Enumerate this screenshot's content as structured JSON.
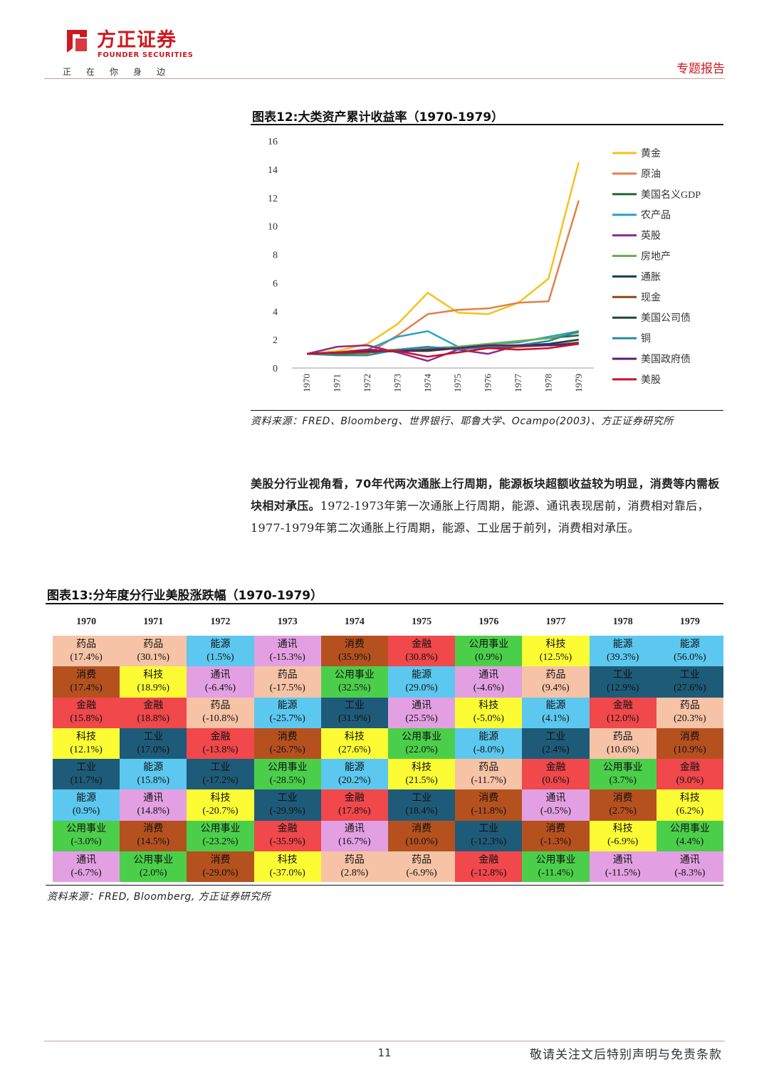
{
  "header": {
    "brand_cn": "方正证券",
    "brand_en": "FOUNDER SECURITIES",
    "slogan": "正在你身边",
    "report_type": "专题报告"
  },
  "figure12": {
    "title": "图表12:大类资产累计收益率（1970-1979）",
    "source": "资料来源：FRED、Bloomberg、世界银行、耶鲁大学、Ocampo(2003)、方正证券研究所"
  },
  "chart_data": {
    "type": "line",
    "title": "",
    "xlabel": "",
    "ylabel": "",
    "ylim": [
      0,
      16
    ],
    "yticks": [
      0,
      2,
      4,
      6,
      8,
      10,
      12,
      14,
      16
    ],
    "x": [
      "1970",
      "1971",
      "1972",
      "1973",
      "1974",
      "1975",
      "1976",
      "1977",
      "1978",
      "1979"
    ],
    "legend_position": "right",
    "grid": false,
    "series": [
      {
        "name": "黄金",
        "color": "#f5c21b",
        "values": [
          1.0,
          1.2,
          1.7,
          3.1,
          5.3,
          3.9,
          3.8,
          4.6,
          6.3,
          14.5
        ]
      },
      {
        "name": "原油",
        "color": "#e2804a",
        "values": [
          1.0,
          1.0,
          1.0,
          2.3,
          3.8,
          4.1,
          4.2,
          4.6,
          4.7,
          11.8
        ]
      },
      {
        "name": "美国名义GDP",
        "color": "#1e6b35",
        "values": [
          1.0,
          1.1,
          1.2,
          1.3,
          1.4,
          1.5,
          1.7,
          1.9,
          2.1,
          2.3
        ]
      },
      {
        "name": "农产品",
        "color": "#27a1c4",
        "values": [
          1.0,
          1.1,
          1.3,
          2.2,
          2.6,
          1.5,
          1.7,
          1.8,
          2.2,
          2.6
        ]
      },
      {
        "name": "英股",
        "color": "#8e2a8e",
        "values": [
          1.0,
          1.5,
          1.6,
          1.1,
          0.5,
          1.3,
          1.0,
          1.6,
          1.6,
          1.8
        ]
      },
      {
        "name": "房地产",
        "color": "#6ab04c",
        "values": [
          1.0,
          1.1,
          1.2,
          1.3,
          1.4,
          1.5,
          1.7,
          1.9,
          2.1,
          2.5
        ]
      },
      {
        "name": "通胀",
        "color": "#0f3d55",
        "values": [
          1.0,
          1.0,
          1.1,
          1.2,
          1.3,
          1.4,
          1.5,
          1.6,
          1.7,
          2.0
        ]
      },
      {
        "name": "现金",
        "color": "#8a4a1a",
        "values": [
          1.0,
          1.0,
          1.1,
          1.2,
          1.3,
          1.4,
          1.4,
          1.5,
          1.6,
          1.8
        ]
      },
      {
        "name": "美国公司债",
        "color": "#1d4a2a",
        "values": [
          1.0,
          1.1,
          1.2,
          1.2,
          1.2,
          1.4,
          1.6,
          1.6,
          1.6,
          1.7
        ]
      },
      {
        "name": "铜",
        "color": "#2e86a0",
        "values": [
          1.0,
          0.9,
          0.9,
          1.3,
          1.5,
          1.3,
          1.5,
          1.6,
          1.9,
          2.6
        ]
      },
      {
        "name": "美国政府债",
        "color": "#5b1f6e",
        "values": [
          1.0,
          1.1,
          1.2,
          1.2,
          1.3,
          1.4,
          1.6,
          1.6,
          1.6,
          1.7
        ]
      },
      {
        "name": "美股",
        "color": "#c8102e",
        "values": [
          1.0,
          1.1,
          1.3,
          1.2,
          0.8,
          1.1,
          1.4,
          1.3,
          1.4,
          1.7
        ]
      }
    ]
  },
  "paragraph": {
    "bold": "美股分行业视角看，70年代两次通胀上行周期，能源板块超额收益较为明显，消费等内需板块相对承压。",
    "text": "1972-1973年第一次通胀上行周期，能源、通讯表现居前，消费相对靠后，1977-1979年第二次通胀上行周期，能源、工业居于前列，消费相对承压。"
  },
  "figure13": {
    "title": "图表13:分年度分行业美股涨跌幅（1970-1979）",
    "source": "资料来源：FRED, Bloomberg, 方正证券研究所",
    "years": [
      "1970",
      "1971",
      "1972",
      "1973",
      "1974",
      "1975",
      "1976",
      "1977",
      "1978",
      "1979"
    ],
    "sector_colors": {
      "药品": "#f6c3a6",
      "消费": "#b5511f",
      "金融": "#f0484b",
      "科技": "#fcfc35",
      "工业": "#1e5b78",
      "能源": "#5cc8ef",
      "公用事业": "#4bcf4b",
      "通讯": "#e2a0e2"
    },
    "rows": [
      [
        [
          "药品",
          "(17.4%)"
        ],
        [
          "药品",
          "(30.1%)"
        ],
        [
          "能源",
          "(1.5%)"
        ],
        [
          "通讯",
          "(-15.3%)"
        ],
        [
          "消费",
          "(35.9%)"
        ],
        [
          "金融",
          "(30.8%)"
        ],
        [
          "公用事业",
          "(0.9%)"
        ],
        [
          "科技",
          "(12.5%)"
        ],
        [
          "能源",
          "(39.3%)"
        ],
        [
          "能源",
          "(56.0%)"
        ]
      ],
      [
        [
          "消费",
          "(17.4%)"
        ],
        [
          "科技",
          "(18.9%)"
        ],
        [
          "通讯",
          "(-6.4%)"
        ],
        [
          "药品",
          "(-17.5%)"
        ],
        [
          "公用事业",
          "(32.5%)"
        ],
        [
          "能源",
          "(29.0%)"
        ],
        [
          "通讯",
          "(-4.6%)"
        ],
        [
          "药品",
          "(9.4%)"
        ],
        [
          "工业",
          "(12.9%)"
        ],
        [
          "工业",
          "(27.6%)"
        ]
      ],
      [
        [
          "金融",
          "(15.8%)"
        ],
        [
          "金融",
          "(18.8%)"
        ],
        [
          "药品",
          "(-10.8%)"
        ],
        [
          "能源",
          "(-25.7%)"
        ],
        [
          "工业",
          "(31.9%)"
        ],
        [
          "通讯",
          "(25.5%)"
        ],
        [
          "科技",
          "(-5.0%)"
        ],
        [
          "能源",
          "(4.1%)"
        ],
        [
          "金融",
          "(12.0%)"
        ],
        [
          "药品",
          "(20.3%)"
        ]
      ],
      [
        [
          "科技",
          "(12.1%)"
        ],
        [
          "工业",
          "(17.0%)"
        ],
        [
          "金融",
          "(-13.8%)"
        ],
        [
          "消费",
          "(-26.7%)"
        ],
        [
          "科技",
          "(27.6%)"
        ],
        [
          "公用事业",
          "(22.0%)"
        ],
        [
          "能源",
          "(-8.0%)"
        ],
        [
          "工业",
          "(2.4%)"
        ],
        [
          "药品",
          "(10.6%)"
        ],
        [
          "消费",
          "(10.9%)"
        ]
      ],
      [
        [
          "工业",
          "(11.7%)"
        ],
        [
          "能源",
          "(15.8%)"
        ],
        [
          "工业",
          "(-17.2%)"
        ],
        [
          "公用事业",
          "(-28.5%)"
        ],
        [
          "能源",
          "(20.2%)"
        ],
        [
          "科技",
          "(21.5%)"
        ],
        [
          "药品",
          "(-11.7%)"
        ],
        [
          "金融",
          "(0.6%)"
        ],
        [
          "公用事业",
          "(3.7%)"
        ],
        [
          "金融",
          "(9.0%)"
        ]
      ],
      [
        [
          "能源",
          "(0.9%)"
        ],
        [
          "通讯",
          "(14.8%)"
        ],
        [
          "科技",
          "(-20.7%)"
        ],
        [
          "工业",
          "(-29.9%)"
        ],
        [
          "金融",
          "(17.8%)"
        ],
        [
          "工业",
          "(18.4%)"
        ],
        [
          "消费",
          "(-11.8%)"
        ],
        [
          "通讯",
          "(-0.5%)"
        ],
        [
          "消费",
          "(2.7%)"
        ],
        [
          "科技",
          "(6.2%)"
        ]
      ],
      [
        [
          "公用事业",
          "(-3.0%)"
        ],
        [
          "消费",
          "(14.5%)"
        ],
        [
          "公用事业",
          "(-23.2%)"
        ],
        [
          "金融",
          "(-35.9%)"
        ],
        [
          "通讯",
          "(16.7%)"
        ],
        [
          "消费",
          "(10.0%)"
        ],
        [
          "工业",
          "(-12.3%)"
        ],
        [
          "消费",
          "(-1.3%)"
        ],
        [
          "科技",
          "(-6.9%)"
        ],
        [
          "公用事业",
          "(4.4%)"
        ]
      ],
      [
        [
          "通讯",
          "(-6.7%)"
        ],
        [
          "公用事业",
          "(2.0%)"
        ],
        [
          "消费",
          "(-29.0%)"
        ],
        [
          "科技",
          "(-37.0%)"
        ],
        [
          "药品",
          "(2.8%)"
        ],
        [
          "药品",
          "(-6.9%)"
        ],
        [
          "金融",
          "(-12.8%)"
        ],
        [
          "公用事业",
          "(-11.4%)"
        ],
        [
          "通讯",
          "(-11.5%)"
        ],
        [
          "通讯",
          "(-8.3%)"
        ]
      ]
    ]
  },
  "footer": {
    "page": "11",
    "disclaimer": "敬请关注文后特别声明与免责条款"
  }
}
